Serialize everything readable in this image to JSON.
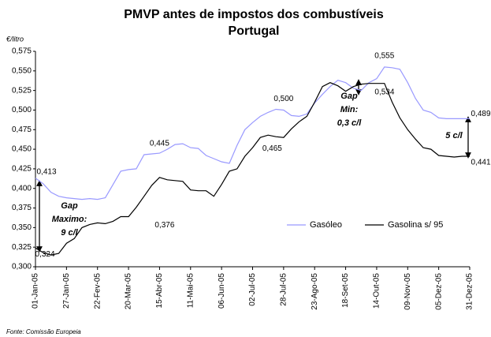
{
  "chart_data": {
    "type": "line",
    "title": "PMVP antes de impostos dos combustíveis",
    "subtitle": "Portugal",
    "y_axis_label": "€/litro",
    "source": "Fonte: Comissão Europeia",
    "categories": [
      "01-Jan-05",
      null,
      null,
      null,
      "27-Jan-05",
      null,
      null,
      null,
      "22-Fev-05",
      null,
      null,
      null,
      "20-Mar-05",
      null,
      null,
      null,
      "15-Abr-05",
      null,
      null,
      null,
      "11-Mai-05",
      null,
      null,
      null,
      "06-Jun-05",
      null,
      null,
      null,
      "02-Jul-05",
      null,
      null,
      null,
      "28-Jul-05",
      null,
      null,
      null,
      "23-Ago-05",
      null,
      null,
      null,
      "18-Set-05",
      null,
      null,
      null,
      "14-Out-05",
      null,
      null,
      null,
      "09-Nov-05",
      null,
      null,
      null,
      "05-Dez-05",
      null,
      null,
      null,
      "31-Dez-05"
    ],
    "series": [
      {
        "name": "Gasóleo",
        "color": "#9999ff",
        "values": [
          0.413,
          0.406,
          0.395,
          0.39,
          0.388,
          0.387,
          0.386,
          0.387,
          0.386,
          0.388,
          0.405,
          0.422,
          0.424,
          0.425,
          0.443,
          0.444,
          0.445,
          0.45,
          0.456,
          0.457,
          0.452,
          0.451,
          0.442,
          0.438,
          0.434,
          0.432,
          0.455,
          0.475,
          0.484,
          0.492,
          0.497,
          0.501,
          0.5,
          0.493,
          0.492,
          0.495,
          0.509,
          0.52,
          0.53,
          0.538,
          0.535,
          0.528,
          0.525,
          0.535,
          0.54,
          0.555,
          0.554,
          0.552,
          0.535,
          0.515,
          0.5,
          0.497,
          0.49,
          0.489,
          0.489,
          0.489,
          0.489
        ],
        "value_labels": [
          "0,413",
          null,
          null,
          null,
          null,
          null,
          null,
          null,
          null,
          null,
          null,
          null,
          null,
          null,
          null,
          null,
          "0,445",
          null,
          null,
          null,
          null,
          null,
          null,
          null,
          null,
          null,
          null,
          null,
          null,
          null,
          null,
          null,
          "0,500",
          null,
          null,
          null,
          null,
          null,
          null,
          null,
          null,
          null,
          null,
          null,
          null,
          "0,555",
          null,
          null,
          null,
          null,
          null,
          null,
          null,
          null,
          null,
          null,
          "0,489"
        ]
      },
      {
        "name": "Gasolina s/ 95",
        "color": "#000000",
        "values": [
          0.324,
          0.318,
          0.315,
          0.317,
          0.33,
          0.336,
          0.35,
          0.354,
          0.356,
          0.355,
          0.358,
          0.364,
          0.364,
          0.376,
          0.39,
          0.404,
          0.414,
          0.411,
          0.41,
          0.409,
          0.398,
          0.397,
          0.397,
          0.39,
          0.405,
          0.422,
          0.425,
          0.441,
          0.452,
          0.465,
          0.468,
          0.466,
          0.465,
          0.476,
          0.485,
          0.492,
          0.51,
          0.53,
          0.535,
          0.531,
          0.524,
          0.53,
          0.533,
          0.534,
          0.534,
          0.534,
          0.51,
          0.49,
          0.475,
          0.463,
          0.452,
          0.45,
          0.442,
          0.441,
          0.44,
          0.441,
          0.441
        ],
        "value_labels": [
          "0,324",
          null,
          null,
          null,
          null,
          null,
          null,
          null,
          null,
          null,
          null,
          null,
          null,
          "0,376",
          null,
          null,
          null,
          null,
          null,
          null,
          null,
          null,
          null,
          null,
          null,
          null,
          null,
          null,
          null,
          "0,465",
          null,
          null,
          null,
          null,
          null,
          null,
          null,
          null,
          null,
          null,
          null,
          null,
          null,
          null,
          "0,534",
          null,
          null,
          null,
          null,
          null,
          null,
          null,
          null,
          null,
          null,
          null,
          "0,441"
        ]
      }
    ],
    "annotations": [
      [
        "Gap",
        "Maximo:",
        "9 c/l"
      ],
      [
        "Gap",
        "Min:",
        "0,3 c/l"
      ],
      [
        "5 c/l"
      ]
    ],
    "ylim": [
      0.3,
      0.575
    ],
    "yticks": [
      {
        "value": 0.3,
        "label": "0,300"
      },
      {
        "value": 0.325,
        "label": "0,325"
      },
      {
        "value": 0.35,
        "label": "0,350"
      },
      {
        "value": 0.375,
        "label": "0,375"
      },
      {
        "value": 0.4,
        "label": "0,400"
      },
      {
        "value": 0.425,
        "label": "0,425"
      },
      {
        "value": 0.45,
        "label": "0,450"
      },
      {
        "value": 0.475,
        "label": "0,475"
      },
      {
        "value": 0.5,
        "label": "0,500"
      },
      {
        "value": 0.525,
        "label": "0,525"
      },
      {
        "value": 0.55,
        "label": "0,550"
      },
      {
        "value": 0.575,
        "label": "0,575"
      }
    ],
    "grid": false,
    "legend": "bottom-right"
  }
}
